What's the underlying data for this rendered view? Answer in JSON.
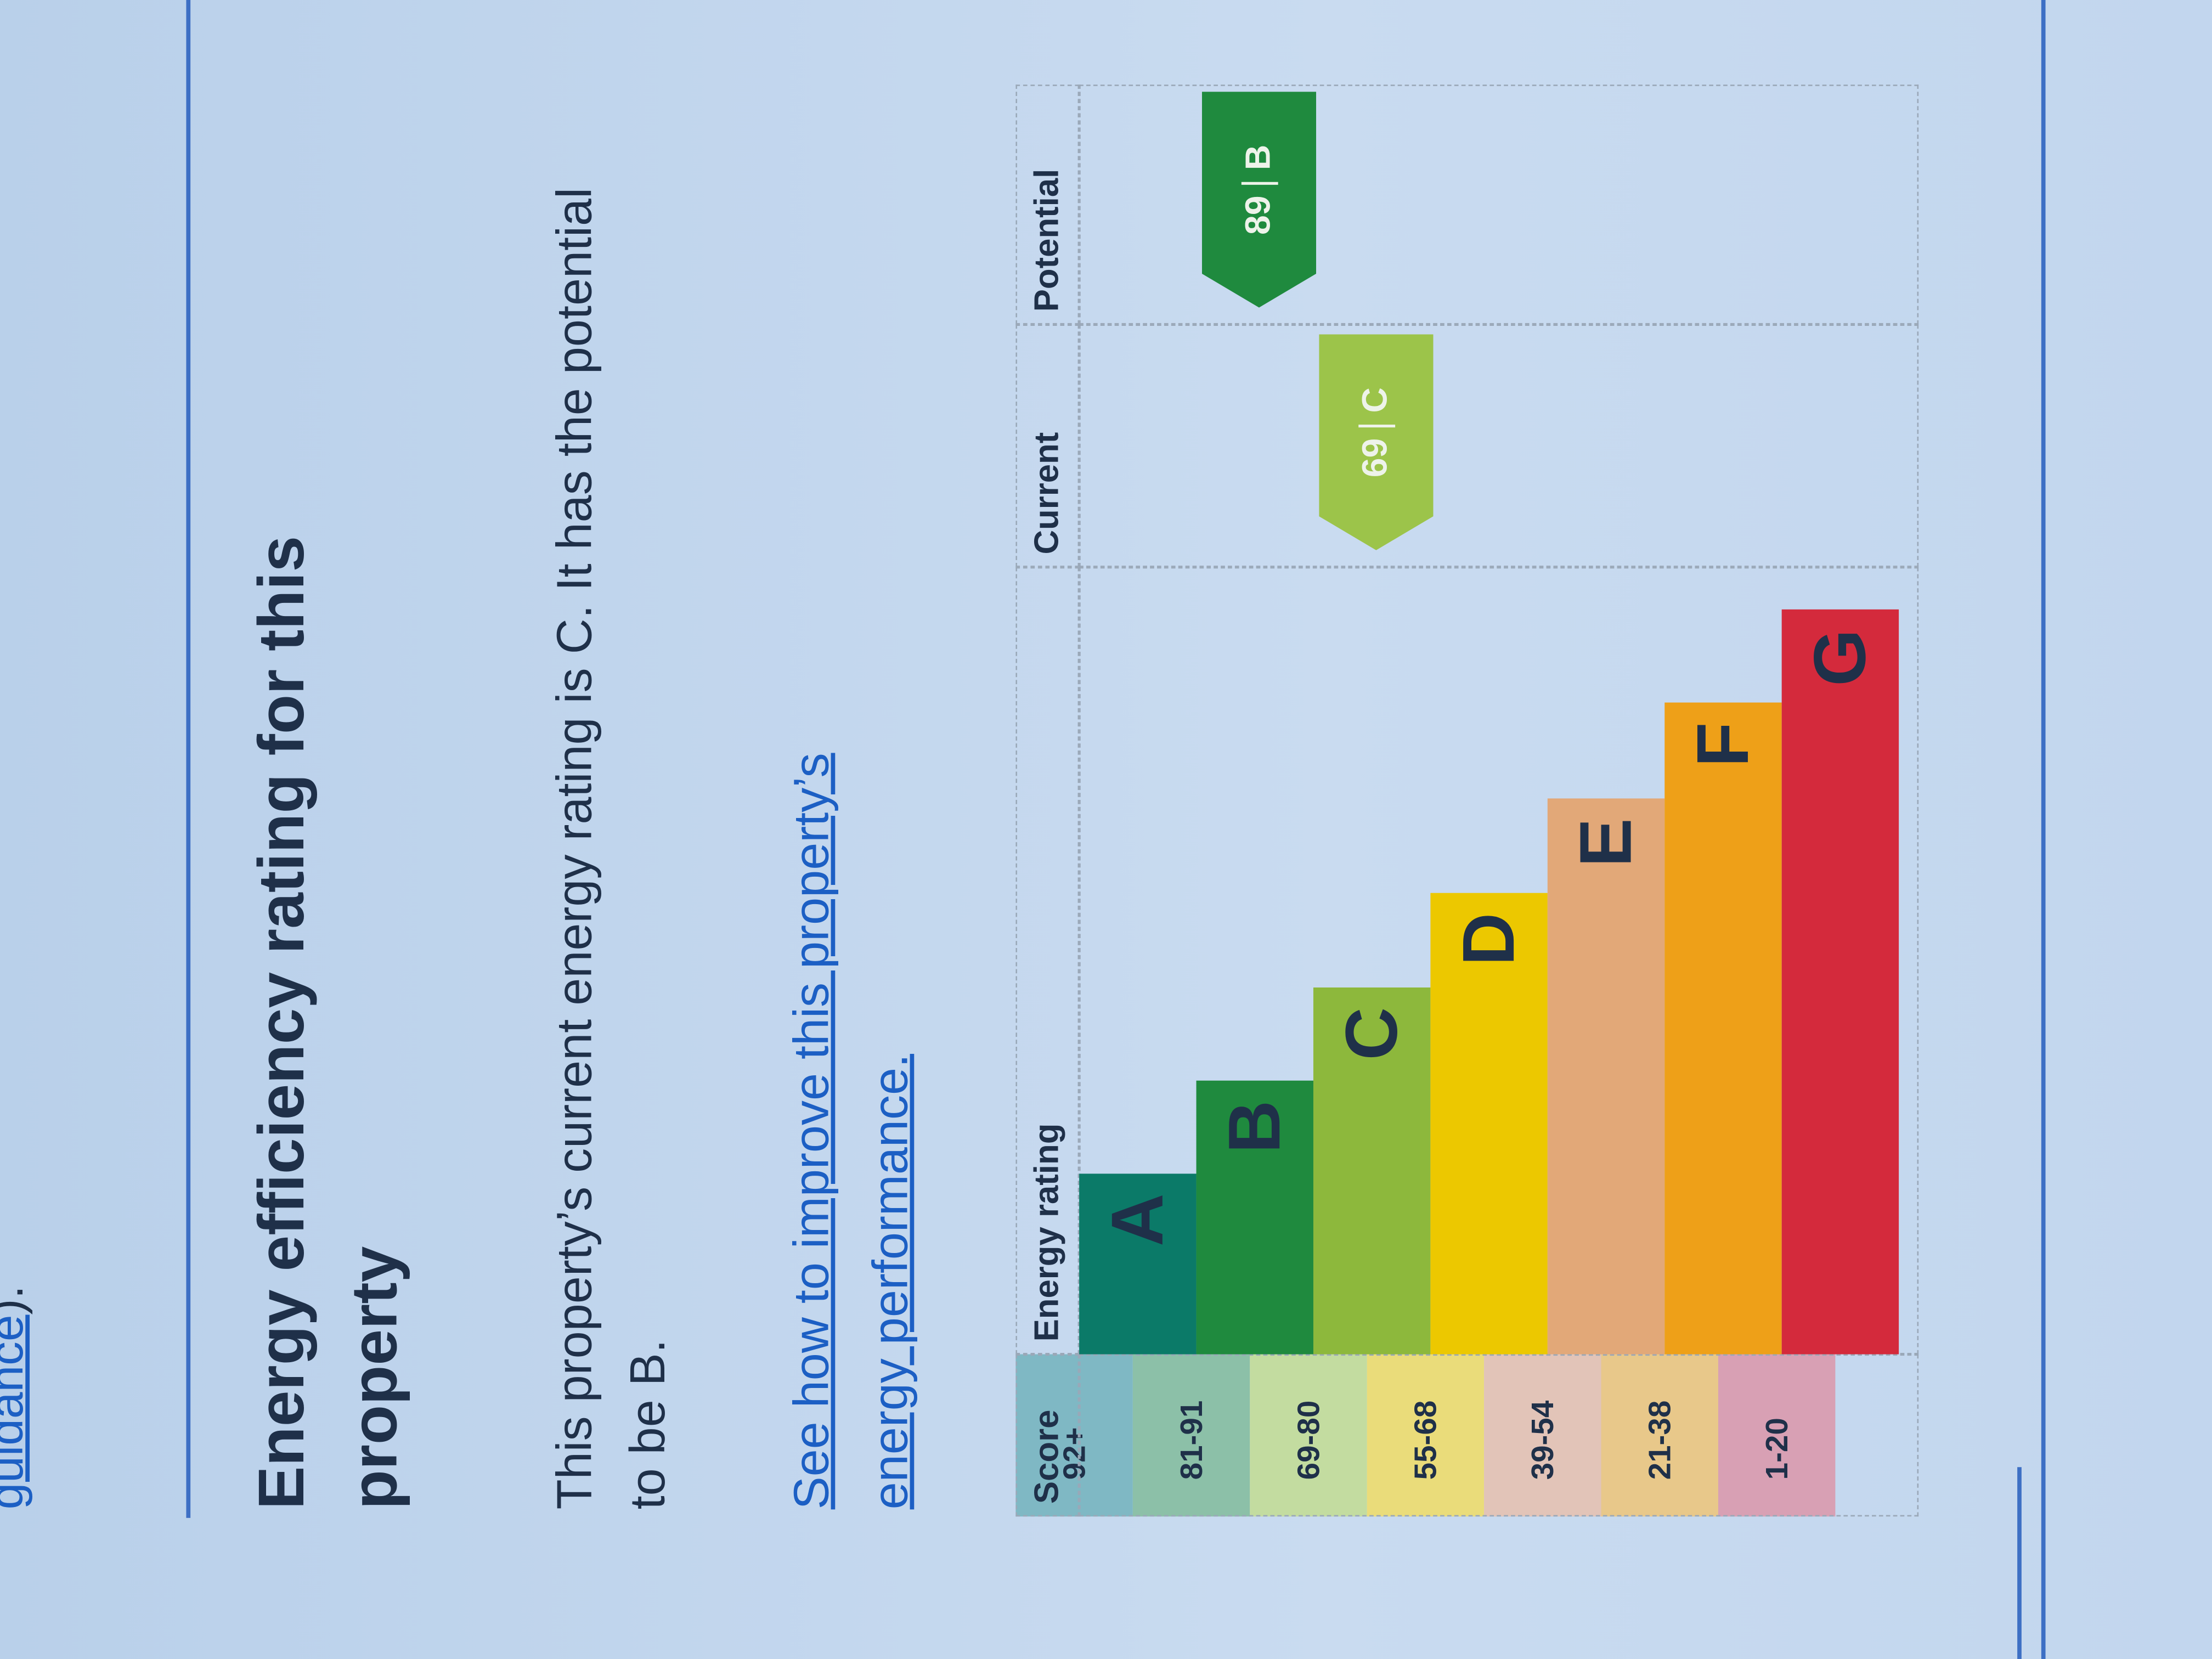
{
  "fragment_link": "guidance",
  "fragment_tail": ").",
  "heading": "Energy efficiency rating for this property",
  "paragraph": "This property’s current energy rating is C. It has the potential to be B.",
  "link": "See how to improve this property’s energy performance.",
  "table": {
    "headers": [
      "Score",
      "Energy rating",
      "Current",
      "Potential"
    ],
    "rows": [
      {
        "score": "92+",
        "band": "A",
        "color": "#0b7a68",
        "tint": "#7fb8c4"
      },
      {
        "score": "81-91",
        "band": "B",
        "color": "#1f8a3e",
        "tint": "#8cc0a8"
      },
      {
        "score": "69-80",
        "band": "C",
        "color": "#8db83c",
        "tint": "#c3dca0"
      },
      {
        "score": "55-68",
        "band": "D",
        "color": "#ecc800",
        "tint": "#eadc7a"
      },
      {
        "score": "39-54",
        "band": "E",
        "color": "#e2a878",
        "tint": "#e2c4b8"
      },
      {
        "score": "21-38",
        "band": "F",
        "color": "#eea018",
        "tint": "#e8c88a"
      },
      {
        "score": "1-20",
        "band": "G",
        "color": "#d42a3c",
        "tint": "#d8a0b4"
      }
    ],
    "current": {
      "value": 69,
      "band": "C",
      "color": "#9cc44a"
    },
    "potential": {
      "value": 89,
      "band": "B",
      "color": "#1f8a3e"
    }
  }
}
